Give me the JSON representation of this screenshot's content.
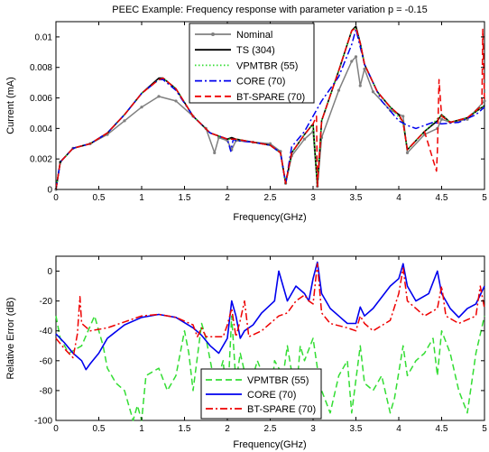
{
  "chart_data": [
    {
      "type": "line",
      "title": "PEEC Example: Frequency response with parameter variation p = -0.15",
      "xlabel": "Frequency(GHz)",
      "ylabel": "Current (mA)",
      "xlim": [
        0,
        5
      ],
      "ylim": [
        0,
        0.011
      ],
      "x_ticks": [
        "0",
        "0.5",
        "1",
        "1.5",
        "2",
        "2.5",
        "3",
        "3.5",
        "4",
        "4.5",
        "5"
      ],
      "y_ticks": [
        "0",
        "0.002",
        "0.004",
        "0.006",
        "0.008",
        "0.01"
      ],
      "y_tick_values": [
        0,
        0.002,
        0.004,
        0.006,
        0.008,
        0.01
      ],
      "legend_position": "top-center",
      "series": [
        {
          "name": "Nominal",
          "color": "#808080",
          "style": "solid-dot",
          "x": [
            0,
            0.05,
            0.2,
            0.4,
            0.6,
            0.8,
            1.0,
            1.2,
            1.4,
            1.6,
            1.75,
            1.85,
            1.9,
            2.0,
            2.05,
            2.1,
            2.3,
            2.5,
            2.62,
            2.68,
            2.75,
            2.9,
            3.0,
            3.05,
            3.1,
            3.3,
            3.45,
            3.5,
            3.55,
            3.6,
            3.7,
            3.9,
            4.05,
            4.1,
            4.3,
            4.45,
            4.5,
            4.6,
            4.8,
            5.0
          ],
          "y": [
            0,
            0.0018,
            0.0027,
            0.003,
            0.0036,
            0.0045,
            0.0054,
            0.0061,
            0.0058,
            0.0048,
            0.004,
            0.0024,
            0.0034,
            0.0032,
            0.0026,
            0.0032,
            0.0031,
            0.003,
            0.0025,
            0.0004,
            0.0022,
            0.0033,
            0.0038,
            0.0002,
            0.0034,
            0.0065,
            0.0084,
            0.0087,
            0.0068,
            0.0079,
            0.0064,
            0.0052,
            0.0048,
            0.0024,
            0.0036,
            0.004,
            0.0046,
            0.0044,
            0.0046,
            0.0058
          ]
        },
        {
          "name": "TS (304)",
          "color": "#000000",
          "style": "solid",
          "x": [
            0,
            0.05,
            0.2,
            0.4,
            0.6,
            0.8,
            1.0,
            1.2,
            1.25,
            1.4,
            1.6,
            1.8,
            2.0,
            2.05,
            2.1,
            2.3,
            2.5,
            2.62,
            2.68,
            2.75,
            2.9,
            3.0,
            3.05,
            3.1,
            3.3,
            3.45,
            3.5,
            3.55,
            3.6,
            3.75,
            3.9,
            4.0,
            4.05,
            4.1,
            4.3,
            4.45,
            4.5,
            4.6,
            4.8,
            5.0
          ],
          "y": [
            0,
            0.0018,
            0.0027,
            0.003,
            0.0037,
            0.0049,
            0.0063,
            0.0073,
            0.0073,
            0.0066,
            0.0048,
            0.0037,
            0.0033,
            0.0034,
            0.0033,
            0.0031,
            0.0029,
            0.0024,
            0.0004,
            0.0024,
            0.0036,
            0.0043,
            0.0002,
            0.0045,
            0.0078,
            0.0104,
            0.0107,
            0.0096,
            0.0082,
            0.0064,
            0.0054,
            0.0049,
            0.0044,
            0.0026,
            0.0038,
            0.0045,
            0.0049,
            0.0044,
            0.0047,
            0.0055
          ]
        },
        {
          "name": "VPMTBR (55)",
          "color": "#33dd33",
          "style": "dotted",
          "x": [
            0,
            0.05,
            0.2,
            0.4,
            0.6,
            0.8,
            1.0,
            1.2,
            1.25,
            1.4,
            1.6,
            1.8,
            2.0,
            2.1,
            2.3,
            2.5,
            2.62,
            2.68,
            2.75,
            2.9,
            3.0,
            3.05,
            3.1,
            3.3,
            3.45,
            3.5,
            3.55,
            3.6,
            3.75,
            3.9,
            4.05,
            4.1,
            4.3,
            4.5,
            4.6,
            4.8,
            5.0
          ],
          "y": [
            0,
            0.0018,
            0.0027,
            0.003,
            0.0037,
            0.0049,
            0.0063,
            0.0072,
            0.0073,
            0.0066,
            0.0048,
            0.0037,
            0.0033,
            0.0033,
            0.0031,
            0.0029,
            0.0024,
            0.0004,
            0.0024,
            0.0036,
            0.0043,
            0.0002,
            0.0045,
            0.0078,
            0.0104,
            0.0106,
            0.0096,
            0.0082,
            0.0064,
            0.0054,
            0.0044,
            0.0026,
            0.0038,
            0.0049,
            0.0044,
            0.0047,
            0.0055
          ]
        },
        {
          "name": "CORE (70)",
          "color": "#0000ee",
          "style": "dashdot",
          "x": [
            0,
            0.05,
            0.2,
            0.4,
            0.6,
            0.8,
            1.0,
            1.2,
            1.25,
            1.4,
            1.6,
            1.8,
            2.0,
            2.04,
            2.07,
            2.1,
            2.3,
            2.5,
            2.62,
            2.68,
            2.75,
            2.9,
            3.0,
            3.1,
            3.3,
            3.45,
            3.5,
            3.6,
            3.8,
            4.0,
            4.1,
            4.2,
            4.4,
            4.5,
            4.7,
            4.9,
            5.0
          ],
          "y": [
            0,
            0.0018,
            0.0027,
            0.003,
            0.0037,
            0.0049,
            0.0063,
            0.0072,
            0.0072,
            0.0065,
            0.0048,
            0.0037,
            0.0033,
            0.0025,
            0.0033,
            0.0032,
            0.0031,
            0.0029,
            0.0024,
            0.0004,
            0.0028,
            0.0038,
            0.0048,
            0.0058,
            0.0074,
            0.0095,
            0.0105,
            0.0082,
            0.0058,
            0.0045,
            0.0042,
            0.004,
            0.0044,
            0.0043,
            0.0044,
            0.0049,
            0.0054
          ]
        },
        {
          "name": "BT-SPARE (70)",
          "color": "#ee0000",
          "style": "dashed",
          "x": [
            0,
            0.05,
            0.2,
            0.4,
            0.6,
            0.8,
            1.0,
            1.2,
            1.25,
            1.4,
            1.6,
            1.8,
            2.0,
            2.1,
            2.3,
            2.5,
            2.62,
            2.68,
            2.75,
            2.9,
            3.0,
            3.04,
            3.05,
            3.1,
            3.3,
            3.45,
            3.5,
            3.55,
            3.6,
            3.75,
            3.9,
            4.0,
            4.05,
            4.1,
            4.3,
            4.44,
            4.45,
            4.47,
            4.5,
            4.6,
            4.8,
            4.97,
            4.98,
            5.0
          ],
          "y": [
            0,
            0.0018,
            0.0027,
            0.003,
            0.0037,
            0.0049,
            0.0063,
            0.0072,
            0.0073,
            0.0066,
            0.0048,
            0.0037,
            0.0033,
            0.0033,
            0.0031,
            0.0029,
            0.0024,
            0.0004,
            0.0024,
            0.0036,
            0.0043,
            0.0048,
            0.0002,
            0.0045,
            0.0078,
            0.0104,
            0.0106,
            0.0096,
            0.0082,
            0.0064,
            0.0054,
            0.0049,
            0.0044,
            0.0026,
            0.0038,
            0.0012,
            0.0025,
            0.0072,
            0.0048,
            0.0044,
            0.0047,
            0.0055,
            0.0105,
            0.0058
          ]
        }
      ]
    },
    {
      "type": "line",
      "title": "",
      "xlabel": "Frequency(GHz)",
      "ylabel": "Relative Error (dB)",
      "xlim": [
        0,
        5
      ],
      "ylim": [
        -100,
        10
      ],
      "x_ticks": [
        "0",
        "0.5",
        "1",
        "1.5",
        "2",
        "2.5",
        "3",
        "3.5",
        "4",
        "4.5",
        "5"
      ],
      "y_ticks": [
        "0",
        "-20",
        "-40",
        "-60",
        "-80",
        "-100"
      ],
      "y_tick_values": [
        0,
        -20,
        -40,
        -60,
        -80,
        -100
      ],
      "legend_position": "bottom-center",
      "series": [
        {
          "name": "VPMTBR (55)",
          "color": "#33dd33",
          "style": "dashed",
          "x": [
            0,
            0.05,
            0.15,
            0.3,
            0.45,
            0.55,
            0.6,
            0.7,
            0.8,
            0.9,
            0.95,
            1.0,
            1.05,
            1.2,
            1.3,
            1.4,
            1.5,
            1.55,
            1.6,
            1.7,
            1.75,
            1.85,
            1.9,
            1.95,
            2.0,
            2.05,
            2.1,
            2.15,
            2.25,
            2.35,
            2.45,
            2.5,
            2.55,
            2.65,
            2.7,
            2.8,
            2.85,
            2.9,
            3.0,
            3.05,
            3.1,
            3.2,
            3.3,
            3.4,
            3.45,
            3.55,
            3.6,
            3.7,
            3.8,
            3.9,
            3.95,
            4.05,
            4.1,
            4.2,
            4.3,
            4.4,
            4.45,
            4.5,
            4.6,
            4.7,
            4.8,
            4.9,
            5.0
          ],
          "y": [
            -30,
            -45,
            -55,
            -50,
            -30,
            -50,
            -65,
            -75,
            -80,
            -100,
            -90,
            -100,
            -70,
            -65,
            -80,
            -70,
            -40,
            -55,
            -80,
            -35,
            -45,
            -75,
            -70,
            -60,
            -90,
            -30,
            -75,
            -55,
            -80,
            -60,
            -75,
            -90,
            -60,
            -70,
            -50,
            -85,
            -50,
            -60,
            -45,
            -65,
            -80,
            -95,
            -70,
            -60,
            -95,
            -50,
            -75,
            -80,
            -70,
            -95,
            -85,
            -50,
            -70,
            -60,
            -55,
            -45,
            -70,
            -40,
            -55,
            -80,
            -95,
            -55,
            -30
          ]
        },
        {
          "name": "CORE (70)",
          "color": "#0000ee",
          "style": "solid",
          "x": [
            0,
            0.1,
            0.2,
            0.3,
            0.35,
            0.4,
            0.5,
            0.6,
            0.8,
            1.0,
            1.2,
            1.4,
            1.6,
            1.7,
            1.8,
            1.9,
            2.0,
            2.05,
            2.1,
            2.15,
            2.2,
            2.3,
            2.4,
            2.55,
            2.6,
            2.7,
            2.8,
            2.9,
            2.95,
            3.0,
            3.05,
            3.1,
            3.2,
            3.3,
            3.4,
            3.5,
            3.55,
            3.6,
            3.7,
            3.9,
            4.0,
            4.05,
            4.1,
            4.2,
            4.35,
            4.45,
            4.5,
            4.6,
            4.7,
            4.8,
            4.9,
            5.0
          ],
          "y": [
            -42,
            -48,
            -55,
            -60,
            -66,
            -62,
            -55,
            -45,
            -36,
            -31,
            -29,
            -31,
            -38,
            -43,
            -50,
            -55,
            -45,
            -20,
            -30,
            -45,
            -40,
            -36,
            -28,
            -20,
            0,
            -20,
            -10,
            -15,
            -20,
            -5,
            6,
            -15,
            -25,
            -30,
            -35,
            -35,
            -24,
            -30,
            -25,
            -10,
            -5,
            5,
            -10,
            -20,
            -15,
            0,
            -15,
            -25,
            -31,
            -25,
            -22,
            -10
          ]
        },
        {
          "name": "BT-SPARE (70)",
          "color": "#ee0000",
          "style": "dashdot",
          "x": [
            0,
            0.1,
            0.2,
            0.25,
            0.28,
            0.3,
            0.4,
            0.6,
            0.8,
            1.0,
            1.2,
            1.4,
            1.6,
            1.65,
            1.7,
            1.75,
            1.85,
            1.95,
            2.0,
            2.05,
            2.1,
            2.15,
            2.2,
            2.25,
            2.4,
            2.6,
            2.7,
            2.8,
            2.9,
            2.95,
            3.0,
            3.05,
            3.1,
            3.2,
            3.4,
            3.5,
            3.55,
            3.6,
            3.7,
            3.9,
            4.0,
            4.05,
            4.1,
            4.3,
            4.45,
            4.5,
            4.55,
            4.7,
            4.9,
            4.95,
            5.0
          ],
          "y": [
            -45,
            -52,
            -58,
            -42,
            -17,
            -35,
            -40,
            -38,
            -34,
            -30,
            -29,
            -31,
            -36,
            -44,
            -38,
            -44,
            -44,
            -44,
            -36,
            -25,
            -44,
            -33,
            -20,
            -44,
            -40,
            -30,
            -28,
            -20,
            -16,
            -20,
            -22,
            5,
            -28,
            -35,
            -38,
            -40,
            -30,
            -35,
            -40,
            -33,
            -15,
            2,
            -20,
            -30,
            -25,
            -10,
            -30,
            -35,
            -30,
            -10,
            -25
          ]
        }
      ]
    }
  ]
}
